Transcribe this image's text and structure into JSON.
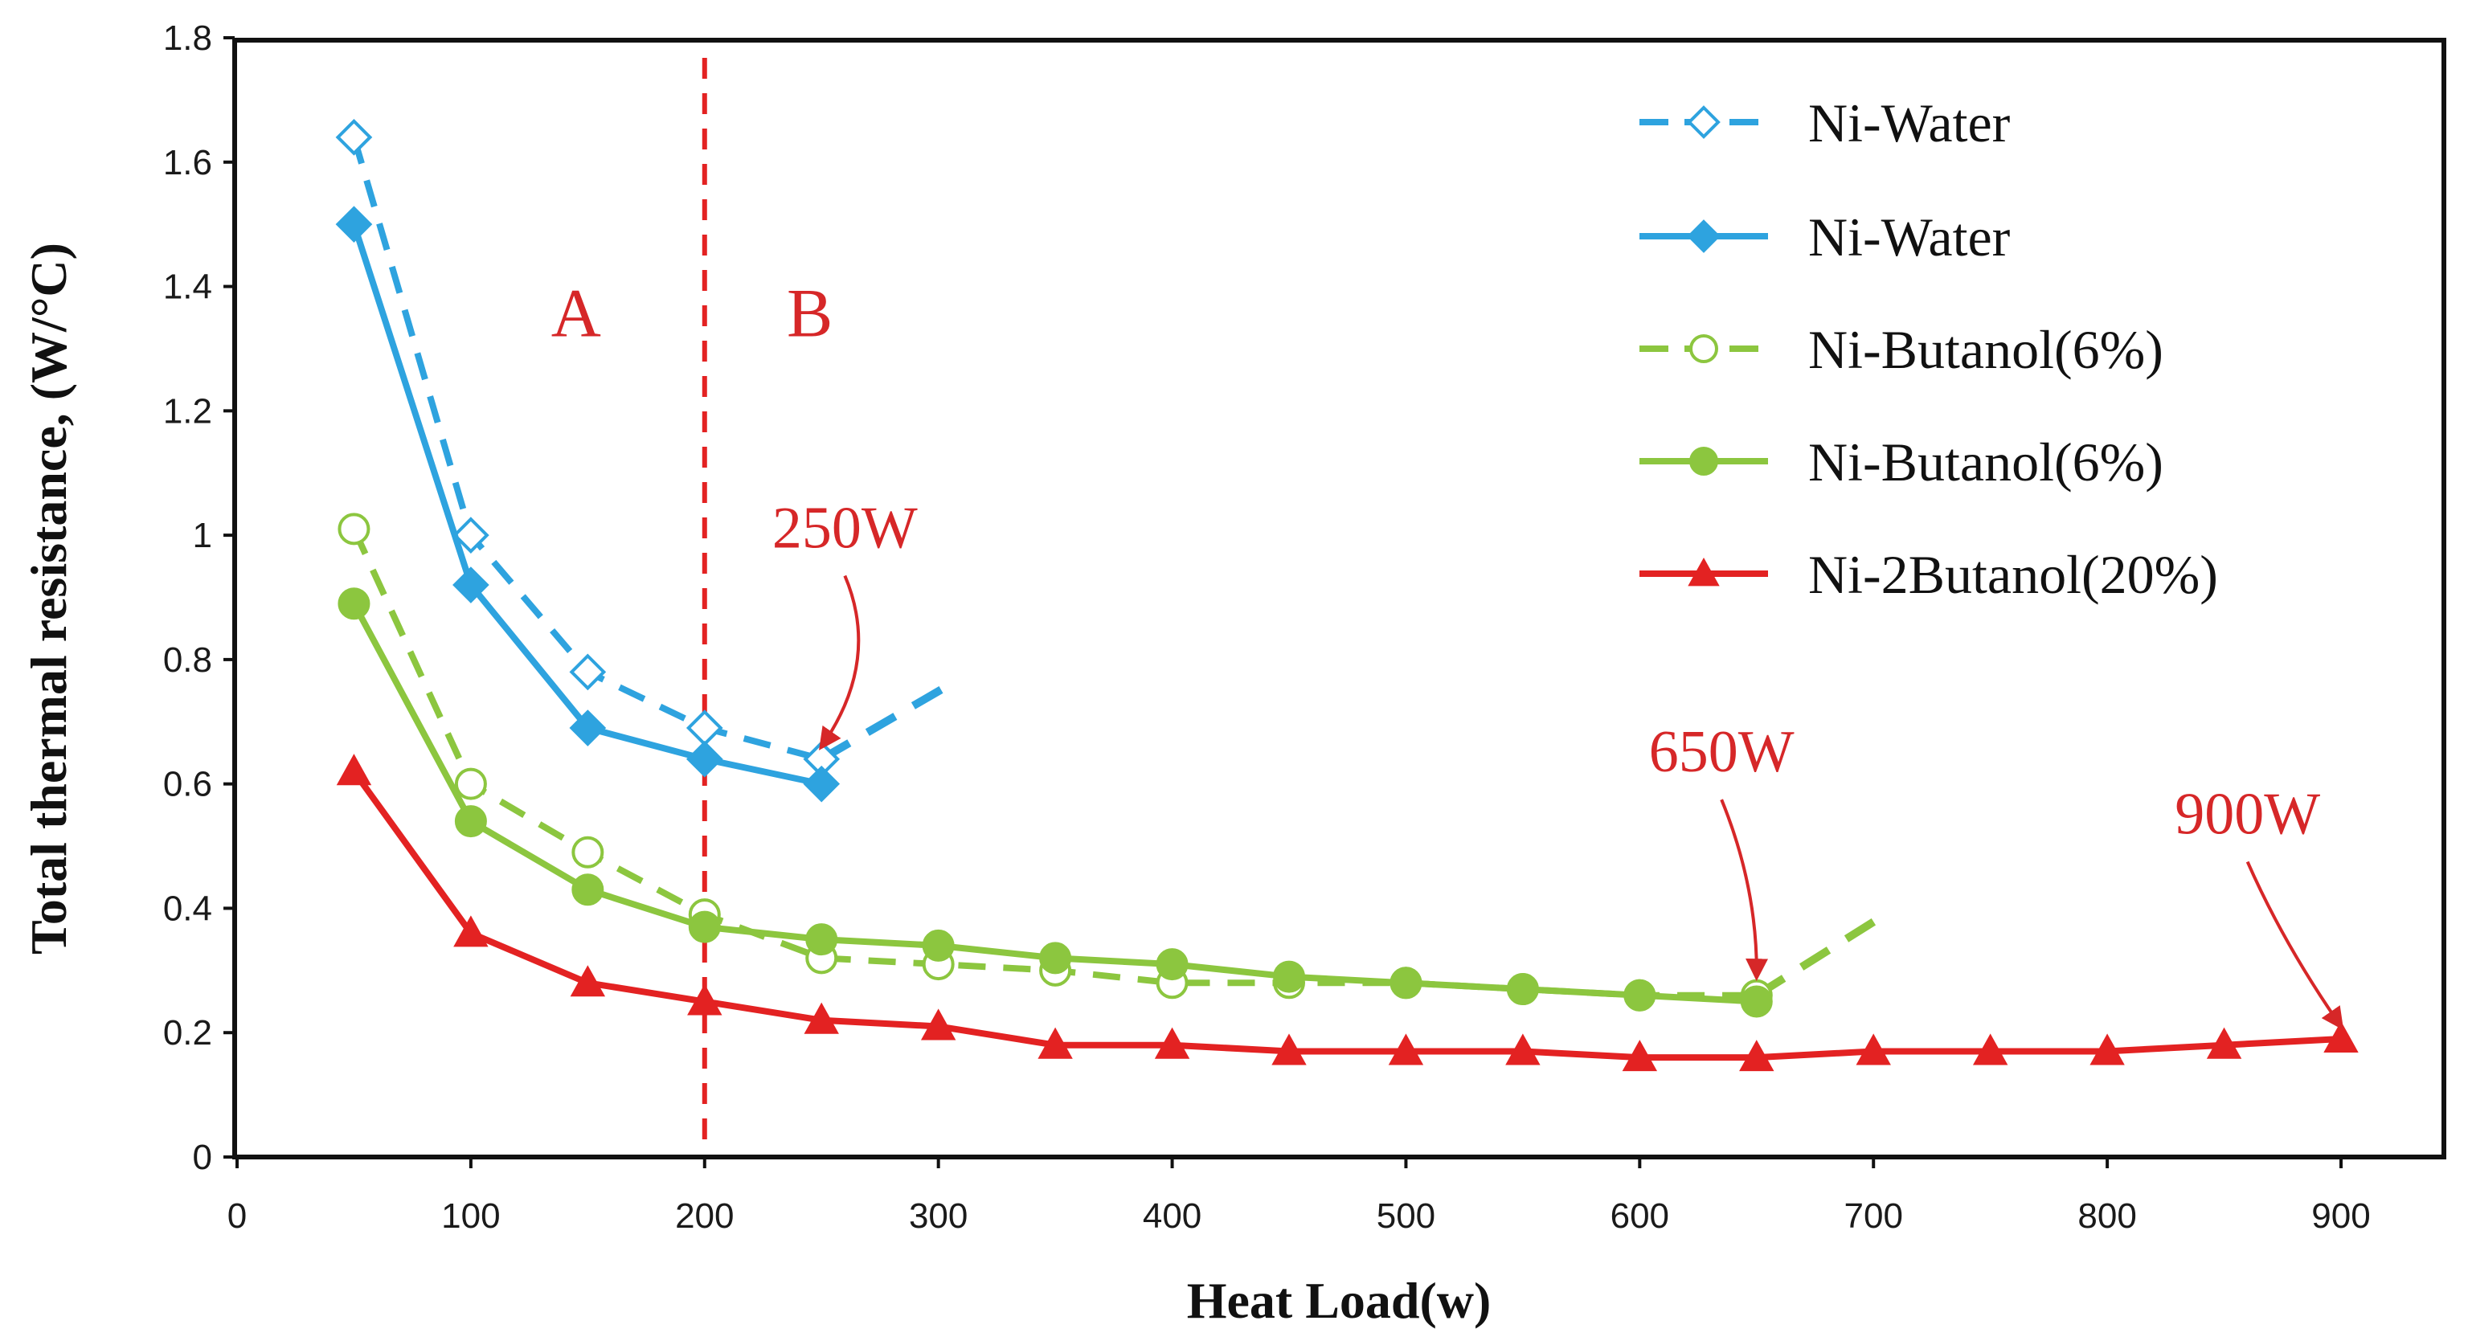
{
  "chart_data": {
    "type": "line",
    "title": "",
    "xlabel": "Heat Load(w)",
    "ylabel": "Total thermal resistance, (W/°C)",
    "xlim": [
      0,
      950
    ],
    "ylim": [
      0,
      1.8
    ],
    "x_ticks": [
      0,
      100,
      200,
      300,
      400,
      500,
      600,
      700,
      800,
      900
    ],
    "y_ticks": [
      0,
      0.2,
      0.4,
      0.6,
      0.8,
      1,
      1.2,
      1.4,
      1.6,
      1.8
    ],
    "x_tick_labels": [
      "0",
      "100",
      "200",
      "300",
      "400",
      "500",
      "600",
      "700",
      "800",
      "900"
    ],
    "y_tick_labels": [
      "0",
      "0.2",
      "0.4",
      "0.6",
      "0.8",
      "1",
      "1.2",
      "1.4",
      "1.6",
      "1.8"
    ],
    "grid": false,
    "legend_position": "top-right",
    "series": [
      {
        "name": "Ni-Water",
        "style": "dashed",
        "marker": "diamond-open",
        "color": "#2ea3df",
        "x": [
          50,
          100,
          150,
          200,
          250
        ],
        "y": [
          1.64,
          1.0,
          0.78,
          0.69,
          0.64
        ],
        "extension": {
          "x": [
            250,
            305
          ],
          "y": [
            0.64,
            0.76
          ]
        }
      },
      {
        "name": "Ni-Water",
        "style": "solid",
        "marker": "diamond-filled",
        "color": "#2ea3df",
        "x": [
          50,
          100,
          150,
          200,
          250
        ],
        "y": [
          1.5,
          0.92,
          0.69,
          0.64,
          0.6
        ]
      },
      {
        "name": "Ni-Butanol(6%)",
        "style": "dashed",
        "marker": "circle-open",
        "color": "#8cc63f",
        "x": [
          50,
          100,
          150,
          200,
          250,
          300,
          350,
          400,
          450,
          500,
          550,
          600,
          650
        ],
        "y": [
          1.01,
          0.6,
          0.49,
          0.39,
          0.32,
          0.31,
          0.3,
          0.28,
          0.28,
          0.28,
          0.27,
          0.26,
          0.26
        ],
        "extension": {
          "x": [
            650,
            705
          ],
          "y": [
            0.26,
            0.39
          ]
        }
      },
      {
        "name": "Ni-Butanol(6%)",
        "style": "solid",
        "marker": "circle-filled",
        "color": "#8cc63f",
        "x": [
          50,
          100,
          150,
          200,
          250,
          300,
          350,
          400,
          450,
          500,
          550,
          600,
          650
        ],
        "y": [
          0.89,
          0.54,
          0.43,
          0.37,
          0.35,
          0.34,
          0.32,
          0.31,
          0.29,
          0.28,
          0.27,
          0.26,
          0.25
        ]
      },
      {
        "name": "Ni-2Butanol(20%)",
        "style": "solid",
        "marker": "triangle-filled",
        "color": "#e32222",
        "x": [
          50,
          100,
          150,
          200,
          250,
          300,
          350,
          400,
          450,
          500,
          550,
          600,
          650,
          700,
          750,
          800,
          850,
          900
        ],
        "y": [
          0.62,
          0.36,
          0.28,
          0.25,
          0.22,
          0.21,
          0.18,
          0.18,
          0.17,
          0.17,
          0.17,
          0.16,
          0.16,
          0.17,
          0.17,
          0.17,
          0.18,
          0.19
        ]
      }
    ],
    "vertical_line": {
      "x": 200,
      "color": "#e32222",
      "style": "dashed"
    },
    "regions": [
      {
        "label": "A",
        "x": 145,
        "y": 1.32
      },
      {
        "label": "B",
        "x": 245,
        "y": 1.32
      }
    ],
    "annotations": [
      {
        "text": "250W",
        "text_x": 260,
        "text_y": 0.98,
        "arrow_to_x": 250,
        "arrow_to_y": 0.66
      },
      {
        "text": "650W",
        "text_x": 635,
        "text_y": 0.62,
        "arrow_to_x": 650,
        "arrow_to_y": 0.29
      },
      {
        "text": "900W",
        "text_x": 860,
        "text_y": 0.52,
        "arrow_to_x": 900,
        "arrow_to_y": 0.21
      }
    ]
  }
}
